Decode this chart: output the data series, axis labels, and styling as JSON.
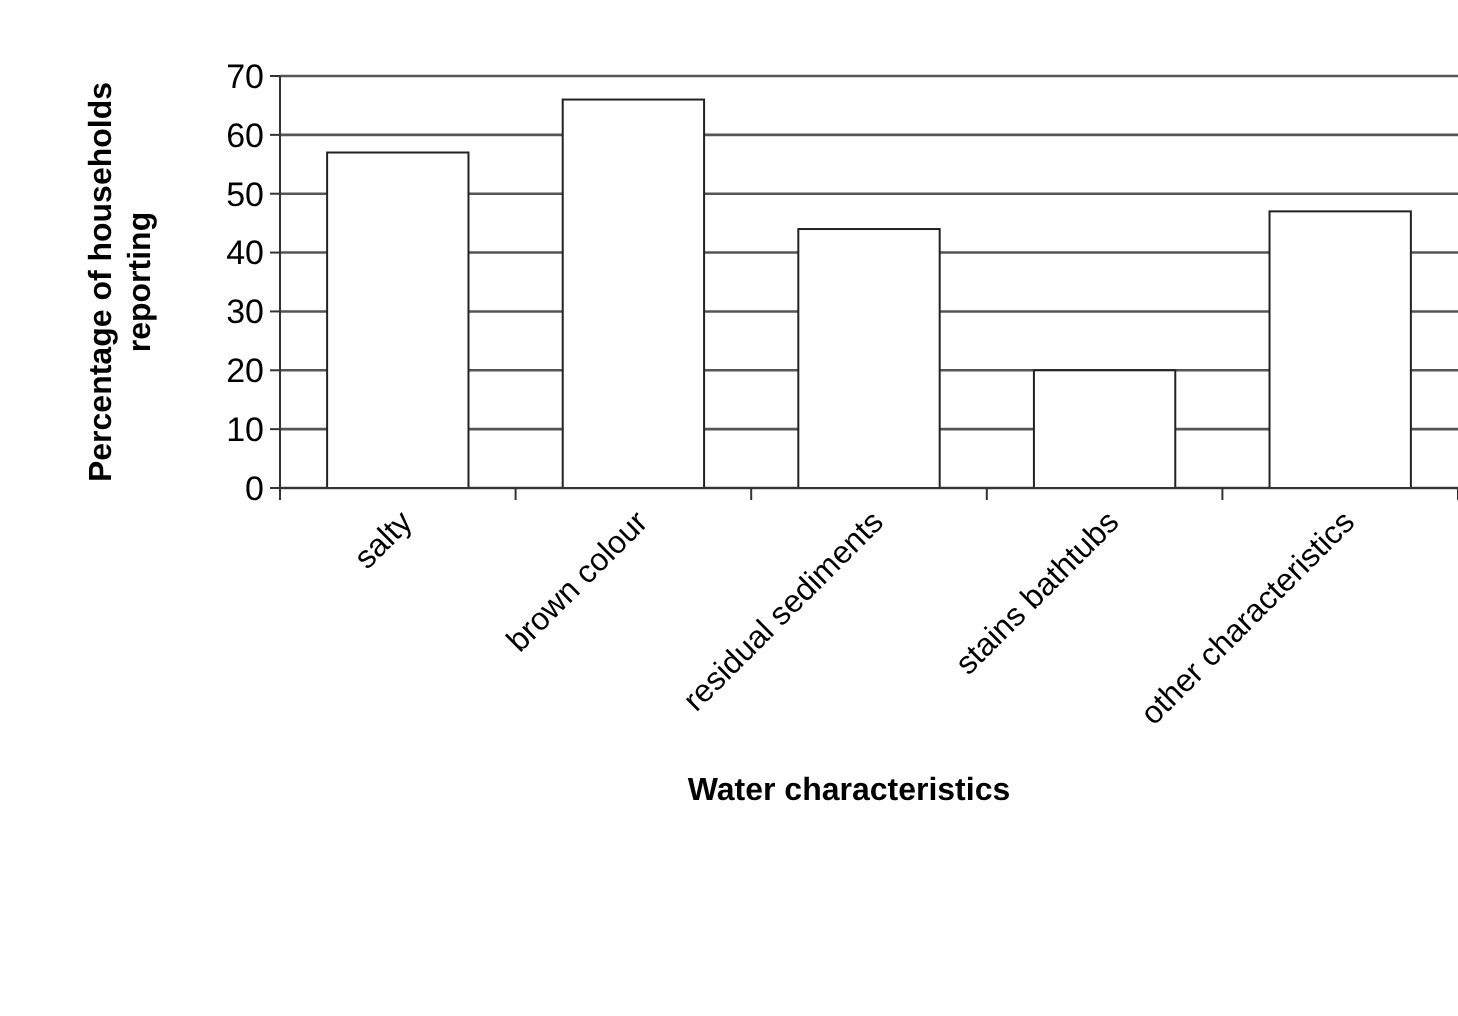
{
  "chart_data": {
    "type": "bar",
    "xlabel": "Water characteristics",
    "ylabel": "Percentage of households reporting",
    "categories": [
      "salty",
      "brown colour",
      "residual sediments",
      "stains bathtubs",
      "other characteristics"
    ],
    "values": [
      57,
      66,
      44,
      20,
      47
    ],
    "color": "#ffffff",
    "ylim": [
      0,
      70
    ],
    "yticks": [
      0,
      10,
      20,
      30,
      40,
      50,
      60,
      70
    ],
    "grid": "y"
  }
}
